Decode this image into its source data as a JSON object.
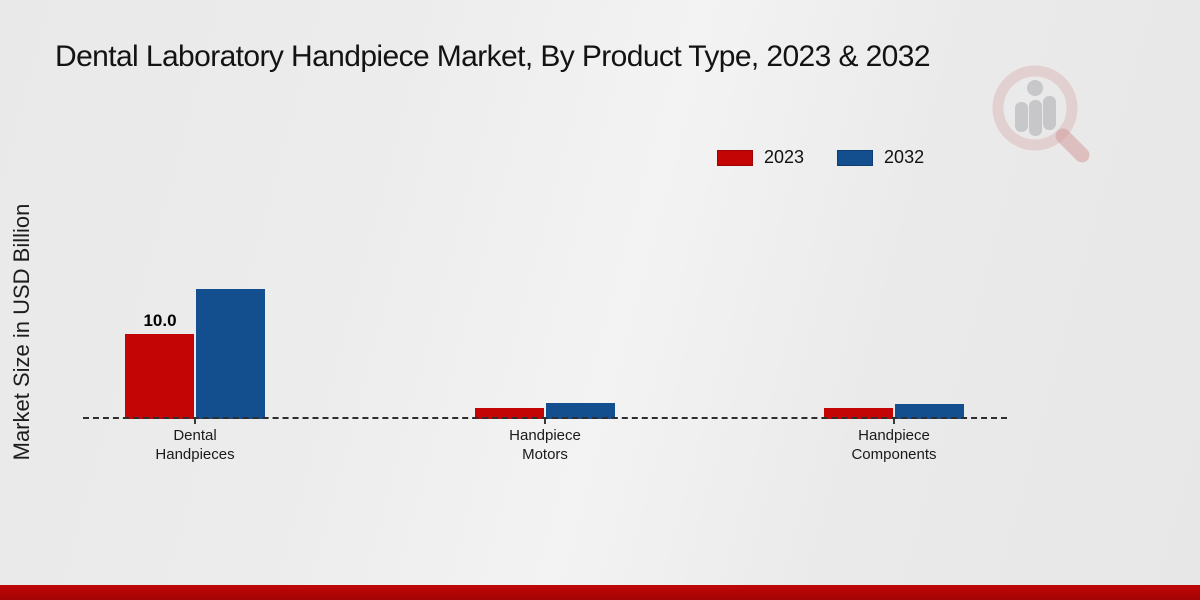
{
  "title": "Dental Laboratory Handpiece Market, By Product Type, 2023 & 2032",
  "watermark_icon": "magnifier-bar-chart-logo",
  "colors": {
    "series_2023": "#c30505",
    "series_2032": "#134e8e",
    "footer_bar_top": "#c00606",
    "footer_bar_bottom": "#a30404",
    "background": "#ebebeb",
    "baseline": "#2e2e2e"
  },
  "legend": {
    "items": [
      {
        "label": "2023",
        "color": "#c30505"
      },
      {
        "label": "2032",
        "color": "#134e8e"
      }
    ],
    "position": "top-right"
  },
  "chart_data": {
    "type": "bar",
    "title": "Dental Laboratory Handpiece Market, By Product Type, 2023 & 2032",
    "xlabel": "",
    "ylabel": "Market Size in USD Billion",
    "categories": [
      "Dental\nHandpieces",
      "Handpiece\nMotors",
      "Handpiece\nComponents"
    ],
    "series": [
      {
        "name": "2023",
        "color": "#c30505",
        "values": [
          10.0,
          1.3,
          1.3
        ]
      },
      {
        "name": "2032",
        "color": "#134e8e",
        "values": [
          15.3,
          1.9,
          1.8
        ]
      }
    ],
    "annotations": [
      {
        "text": "10.0",
        "category_index": 0,
        "series_index": 0
      }
    ],
    "ylim": [
      0,
      17
    ],
    "grid": false,
    "baseline_style": "dashed",
    "legend_position": "top-right"
  }
}
